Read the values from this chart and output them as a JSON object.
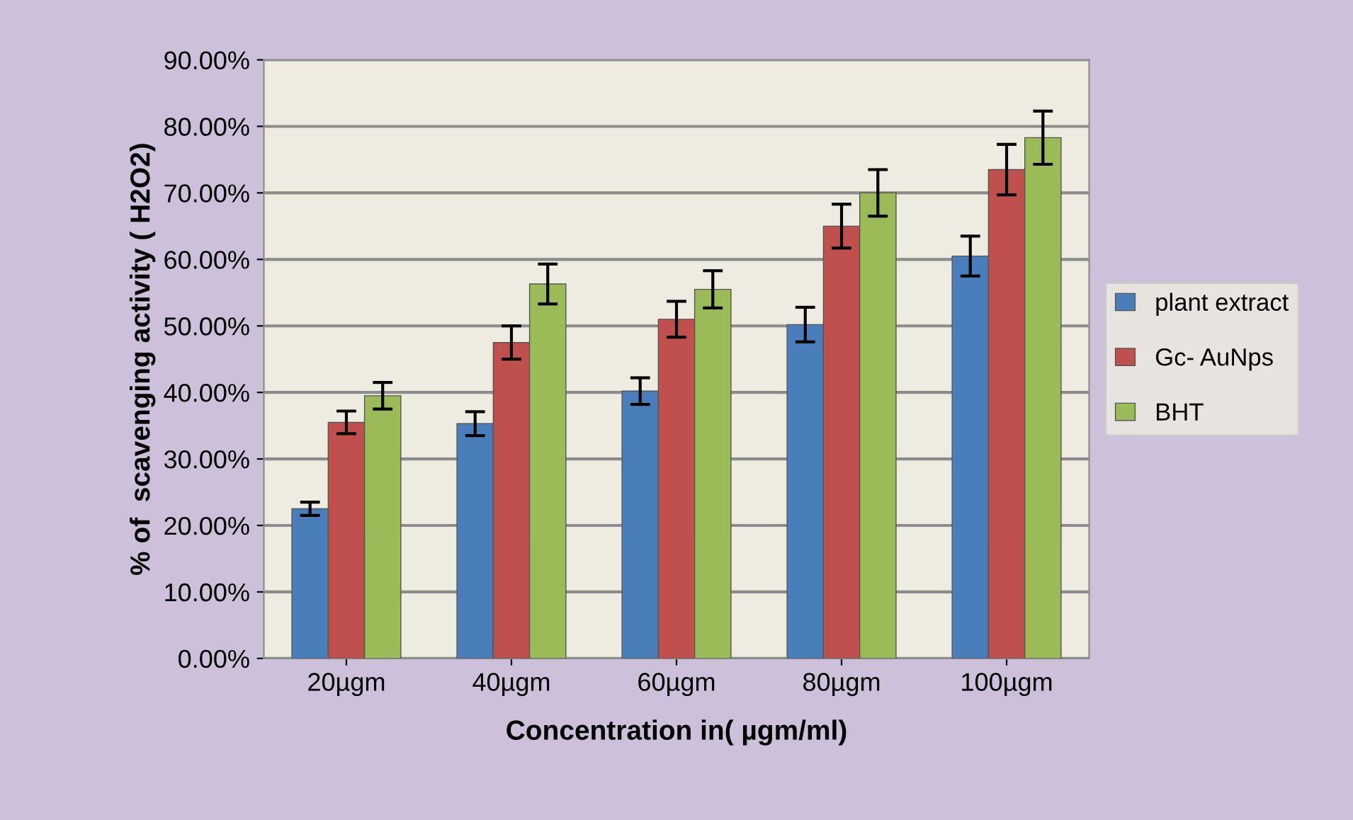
{
  "chart_data": {
    "type": "bar",
    "xlabel": "Concentration in( µgm/ml)",
    "ylabel": "% of  scavenging activity ( H2O2)",
    "categories": [
      "20µgm",
      "40µgm",
      "60µgm",
      "80µgm",
      "100µgm"
    ],
    "series": [
      {
        "name": "plant extract",
        "color": "#4a7ebb",
        "values": [
          22.5,
          35.3,
          40.2,
          50.2,
          60.5
        ],
        "errors": [
          1.0,
          1.8,
          2.0,
          2.6,
          3.0
        ]
      },
      {
        "name": "Gc- AuNps",
        "color": "#c0504d",
        "values": [
          35.5,
          47.5,
          51.0,
          65.0,
          73.5
        ],
        "errors": [
          1.7,
          2.5,
          2.7,
          3.3,
          3.8
        ]
      },
      {
        "name": "BHT",
        "color": "#9bbb59",
        "values": [
          39.5,
          56.3,
          55.5,
          70.0,
          78.3
        ],
        "errors": [
          2.0,
          3.0,
          2.8,
          3.5,
          4.0
        ]
      }
    ],
    "ylim": [
      0,
      90
    ],
    "yticks": [
      {
        "value": 0,
        "label": "0.00%"
      },
      {
        "value": 10,
        "label": "10.00%"
      },
      {
        "value": 20,
        "label": "20.00%"
      },
      {
        "value": 30,
        "label": "30.00%"
      },
      {
        "value": 40,
        "label": "40.00%"
      },
      {
        "value": 50,
        "label": "50.00%"
      },
      {
        "value": 60,
        "label": "60.00%"
      },
      {
        "value": 70,
        "label": "70.00%"
      },
      {
        "value": 80,
        "label": "80.00%"
      },
      {
        "value": 90,
        "label": "90.00%"
      }
    ],
    "grid": "y",
    "legend": "right"
  }
}
